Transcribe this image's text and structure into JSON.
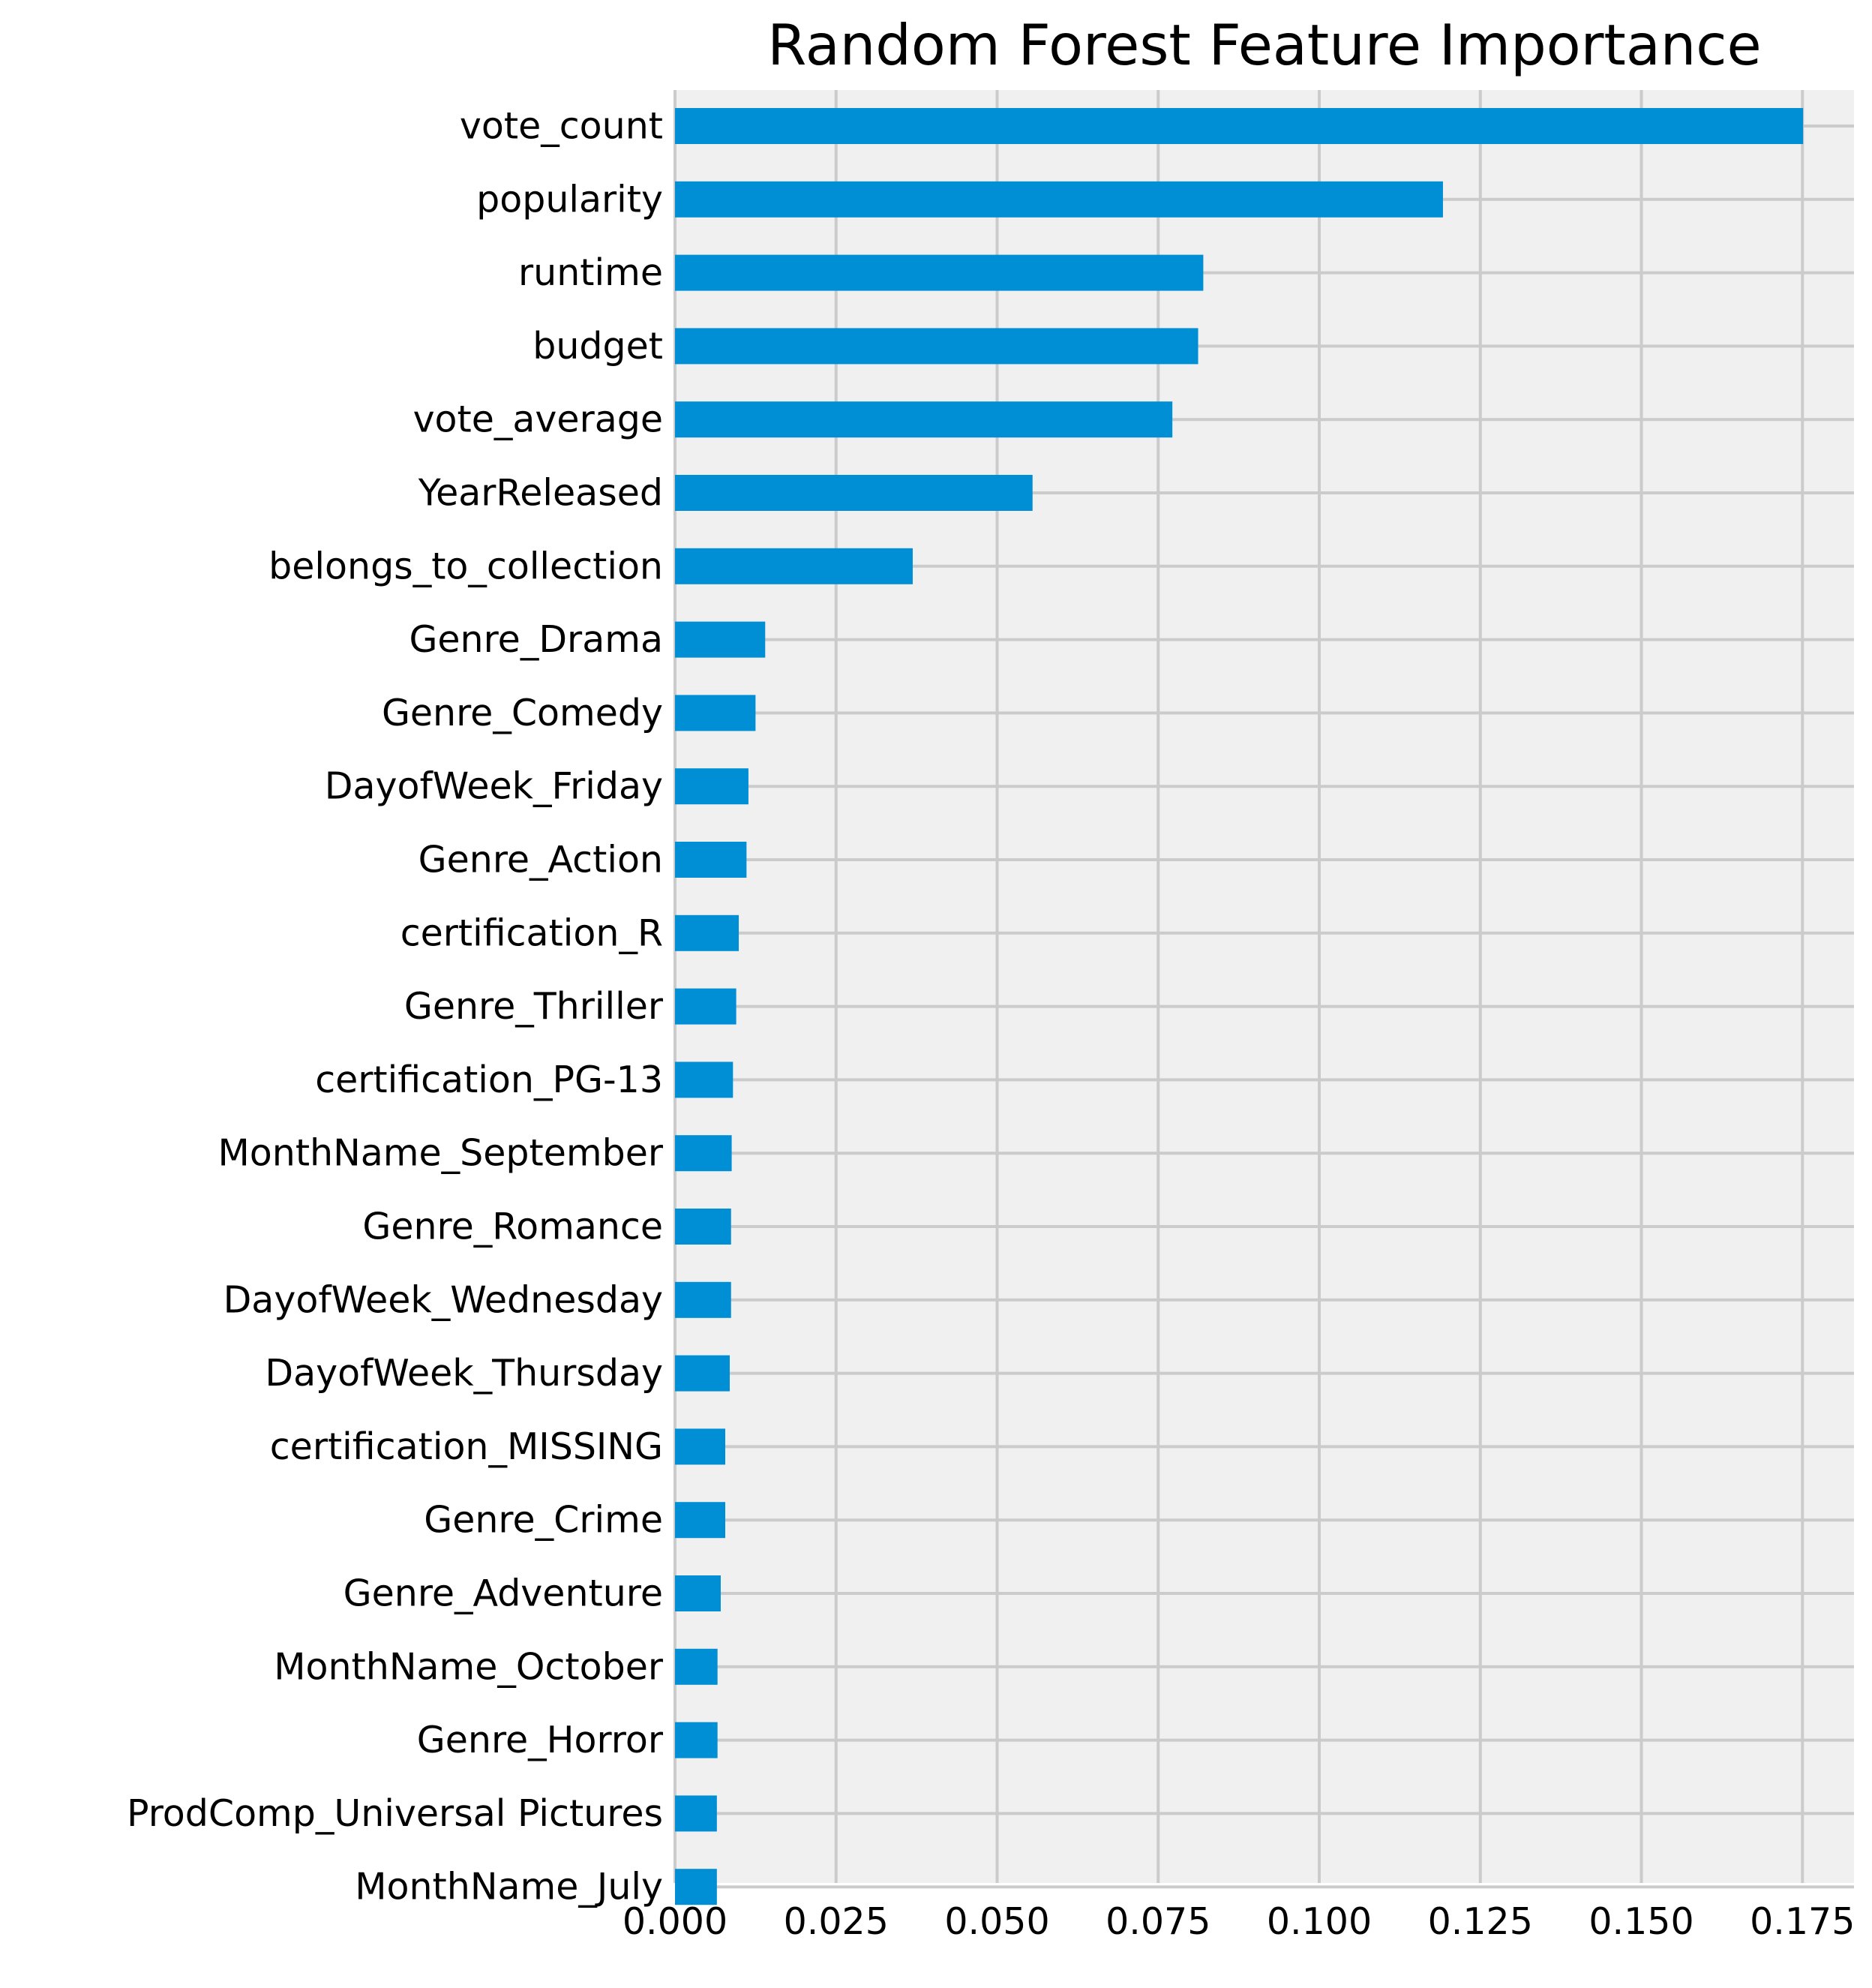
{
  "chart_data": {
    "type": "bar",
    "orientation": "horizontal",
    "title": "Random Forest Feature Importance",
    "xlabel": "",
    "ylabel": "",
    "xlim": [
      0.0,
      0.183
    ],
    "grid": true,
    "x_ticks": [
      "0.000",
      "0.025",
      "0.050",
      "0.075",
      "0.100",
      "0.125",
      "0.150",
      "0.175"
    ],
    "categories": [
      "vote_count",
      "popularity",
      "runtime",
      "budget",
      "vote_average",
      "YearReleased",
      "belongs_to_collection",
      "Genre_Drama",
      "Genre_Comedy",
      "DayofWeek_Friday",
      "Genre_Action",
      "certification_R",
      "Genre_Thriller",
      "certification_PG-13",
      "MonthName_September",
      "Genre_Romance",
      "DayofWeek_Wednesday",
      "DayofWeek_Thursday",
      "certification_MISSING",
      "Genre_Crime",
      "Genre_Adventure",
      "MonthName_October",
      "Genre_Horror",
      "ProdComp_Universal Pictures",
      "MonthName_July"
    ],
    "values": [
      0.1751,
      0.1192,
      0.082,
      0.0812,
      0.0772,
      0.0555,
      0.0369,
      0.014,
      0.0125,
      0.0114,
      0.0111,
      0.0099,
      0.0095,
      0.009,
      0.0088,
      0.0087,
      0.0087,
      0.0085,
      0.0078,
      0.0078,
      0.0071,
      0.0066,
      0.0066,
      0.0065,
      0.0065
    ],
    "colors": {
      "bar": "#008FD5",
      "plot_bg": "#F0F0F0",
      "grid": "#CBCBCB",
      "figure_bg": "#FFFFFF"
    }
  }
}
